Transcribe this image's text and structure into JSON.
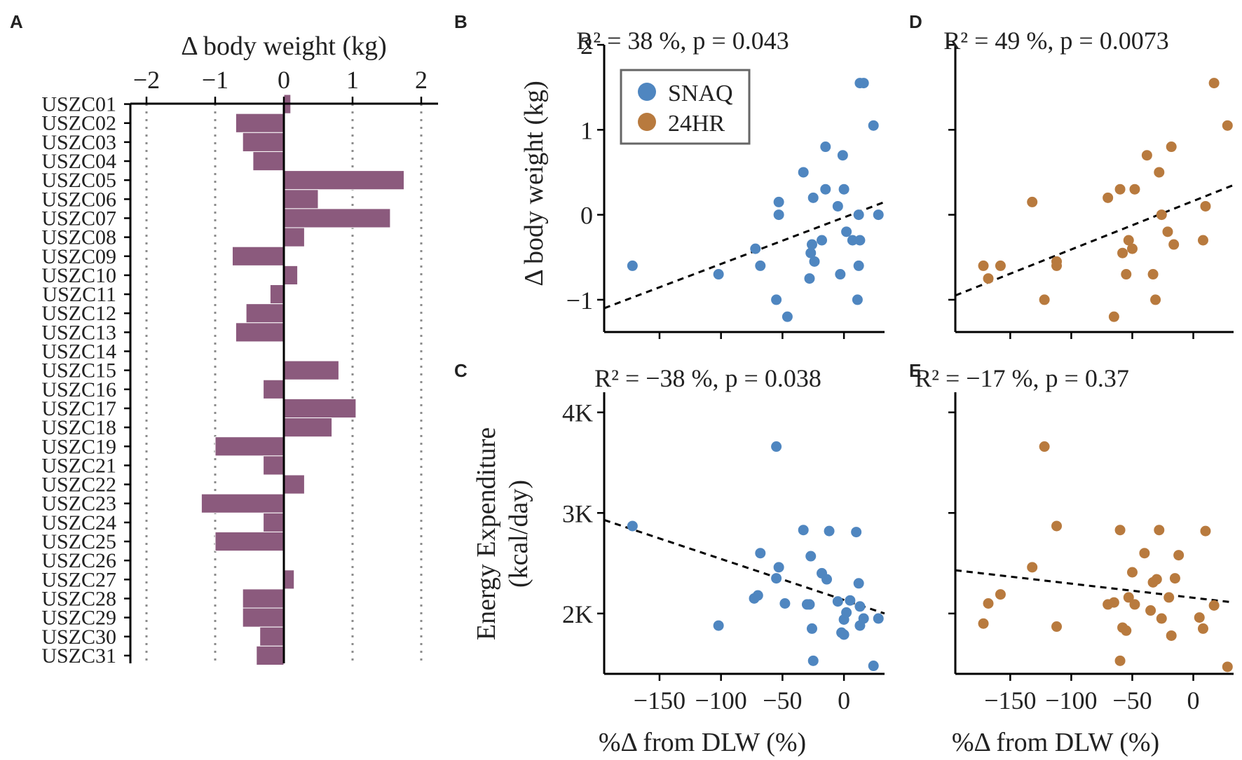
{
  "colors": {
    "bar": "#8b5a7d",
    "snaq": "#4f86c0",
    "hr24": "#b87a3e",
    "grid": "#8c8c8c",
    "legend_border": "#666666"
  },
  "chart_data": [
    {
      "panel": "A",
      "type": "bar",
      "orientation": "horizontal",
      "title": "Δ body weight (kg)",
      "xlim": [
        -2.2,
        2.2
      ],
      "xticks": [
        -2,
        -1,
        0,
        1,
        2
      ],
      "xtick_labels": [
        "−2",
        "−1",
        "0",
        "1",
        "2"
      ],
      "grid": "vertical dotted at -2, -1, 1, 2",
      "categories": [
        "USZC01",
        "USZC02",
        "USZC03",
        "USZC04",
        "USZC05",
        "USZC06",
        "USZC07",
        "USZC08",
        "USZC09",
        "USZC10",
        "USZC11",
        "USZC12",
        "USZC13",
        "USZC14",
        "USZC15",
        "USZC16",
        "USZC17",
        "USZC18",
        "USZC19",
        "USZC21",
        "USZC22",
        "USZC23",
        "USZC24",
        "USZC25",
        "USZC26",
        "USZC27",
        "USZC28",
        "USZC29",
        "USZC30",
        "USZC31"
      ],
      "values": [
        0.1,
        -0.7,
        -0.6,
        -0.45,
        1.75,
        0.5,
        1.55,
        0.3,
        -0.75,
        0.2,
        -0.2,
        -0.55,
        -0.7,
        0.0,
        0.8,
        -0.3,
        1.05,
        0.7,
        -1.0,
        -0.3,
        0.3,
        -1.2,
        -0.3,
        -1.0,
        0.0,
        0.15,
        -0.6,
        -0.6,
        -0.35,
        -0.4
      ]
    },
    {
      "panel": "B",
      "type": "scatter",
      "annotation": {
        "r2": "R² = 38 %, p = 0.043"
      },
      "xlim": [
        -195,
        33
      ],
      "ylim": [
        -1.38,
        2.0
      ],
      "xticks": [
        -150,
        -100,
        -50,
        0
      ],
      "yticks": [
        -1,
        0,
        1,
        2
      ],
      "ytick_labels": [
        "−1",
        "0",
        "1",
        "2"
      ],
      "ylabel": "Δ body weight (kg)",
      "legend": {
        "placement": "top-left",
        "entries": [
          "SNAQ",
          "24HR"
        ]
      },
      "trend": {
        "x": [
          -195,
          33
        ],
        "y": [
          -1.1,
          0.15
        ]
      },
      "series": [
        {
          "name": "SNAQ",
          "x": [
            -172,
            -102,
            -72,
            -68,
            -55,
            -53,
            -53,
            -46,
            -33,
            -28,
            -27,
            -26,
            -25,
            -24,
            -18,
            -15,
            -15,
            -5,
            -3,
            -1,
            0,
            2,
            7,
            11,
            12,
            12,
            13,
            13,
            16,
            24,
            28
          ],
          "y": [
            -0.6,
            -0.7,
            -0.4,
            -0.6,
            -1.0,
            0.0,
            0.15,
            -1.2,
            0.5,
            -0.75,
            -0.45,
            -0.35,
            0.2,
            -0.55,
            -0.3,
            0.3,
            0.8,
            0.1,
            -0.7,
            0.7,
            0.3,
            -0.2,
            -0.3,
            -1.0,
            -0.6,
            0.0,
            -0.3,
            1.55,
            1.55,
            1.05,
            0.0
          ]
        }
      ]
    },
    {
      "panel": "C",
      "type": "scatter",
      "annotation": {
        "r2": "R² = −38 %, p = 0.038"
      },
      "xlim": [
        -195,
        33
      ],
      "ylim": [
        1400,
        4200
      ],
      "xticks": [
        -150,
        -100,
        -50,
        0
      ],
      "yticks": [
        2000,
        3000,
        4000
      ],
      "xtick_labels": [
        "−150",
        "−100",
        "−50",
        "0"
      ],
      "ytick_labels": [
        "2K",
        "3K",
        "4K"
      ],
      "xlabel": "%Δ from DLW (%)",
      "ylabel": [
        "Energy Expenditure",
        "(kcal/day)"
      ],
      "trend": {
        "x": [
          -195,
          33
        ],
        "y": [
          2930,
          2000
        ]
      },
      "series": [
        {
          "name": "SNAQ",
          "x": [
            -172,
            -102,
            -73,
            -70,
            -68,
            -55,
            -55,
            -53,
            -48,
            -33,
            -30,
            -28,
            -27,
            -26,
            -25,
            -18,
            -14,
            -12,
            -5,
            -2,
            0,
            0,
            2,
            5,
            10,
            12,
            13,
            13,
            16,
            24,
            28
          ],
          "y": [
            2870,
            1880,
            2150,
            2180,
            2600,
            3660,
            2350,
            2460,
            2100,
            2830,
            2090,
            2090,
            2570,
            1850,
            1530,
            2400,
            2340,
            2820,
            2120,
            1810,
            1790,
            1940,
            2010,
            2130,
            2810,
            2300,
            2070,
            1880,
            1950,
            1480,
            1950
          ]
        }
      ]
    },
    {
      "panel": "D",
      "type": "scatter",
      "annotation": {
        "r2": "R² = 49 %, p = 0.0073"
      },
      "xlim": [
        -195,
        33
      ],
      "ylim": [
        -1.38,
        2.0
      ],
      "xticks": [
        -150,
        -100,
        -50,
        0
      ],
      "yticks": [
        -1,
        0,
        1,
        2
      ],
      "trend": {
        "x": [
          -195,
          33
        ],
        "y": [
          -0.95,
          0.35
        ]
      },
      "series": [
        {
          "name": "24HR",
          "x": [
            -172,
            -168,
            -158,
            -132,
            -122,
            -112,
            -112,
            -70,
            -65,
            -60,
            -58,
            -55,
            -53,
            -50,
            -48,
            -38,
            -33,
            -31,
            -28,
            -26,
            -21,
            -18,
            -16,
            8,
            10,
            17,
            28
          ],
          "y": [
            -0.6,
            -0.75,
            -0.6,
            0.15,
            -1.0,
            -0.55,
            -0.6,
            0.2,
            -1.2,
            0.3,
            -0.45,
            -0.7,
            -0.3,
            -0.4,
            0.3,
            0.7,
            -0.7,
            -1.0,
            0.5,
            0.0,
            -0.2,
            0.8,
            -0.35,
            -0.3,
            0.1,
            1.55,
            1.05
          ]
        }
      ]
    },
    {
      "panel": "E",
      "type": "scatter",
      "annotation": {
        "r2": "R² = −17 %, p = 0.37"
      },
      "xlim": [
        -195,
        33
      ],
      "ylim": [
        1400,
        4200
      ],
      "xticks": [
        -150,
        -100,
        -50,
        0
      ],
      "yticks": [
        2000,
        3000,
        4000
      ],
      "xtick_labels": [
        "−150",
        "−100",
        "−50",
        "0"
      ],
      "xlabel": "%Δ from DLW (%)",
      "trend": {
        "x": [
          -195,
          33
        ],
        "y": [
          2430,
          2110
        ]
      },
      "series": [
        {
          "name": "24HR",
          "x": [
            -172,
            -168,
            -158,
            -132,
            -122,
            -112,
            -112,
            -70,
            -65,
            -60,
            -60,
            -58,
            -55,
            -53,
            -50,
            -48,
            -40,
            -35,
            -33,
            -30,
            -28,
            -26,
            -20,
            -18,
            -15,
            -12,
            5,
            8,
            10,
            17,
            28
          ],
          "y": [
            1900,
            2100,
            2190,
            2460,
            3660,
            2870,
            1870,
            2090,
            2110,
            2830,
            1530,
            1860,
            1830,
            2160,
            2410,
            2090,
            2600,
            2030,
            2310,
            2340,
            2830,
            1950,
            2160,
            1780,
            2350,
            2580,
            1960,
            1850,
            2820,
            2080,
            1470
          ]
        }
      ]
    }
  ],
  "panel_labels": {
    "a": "A",
    "b": "B",
    "c": "C",
    "d": "D",
    "e": "E"
  }
}
